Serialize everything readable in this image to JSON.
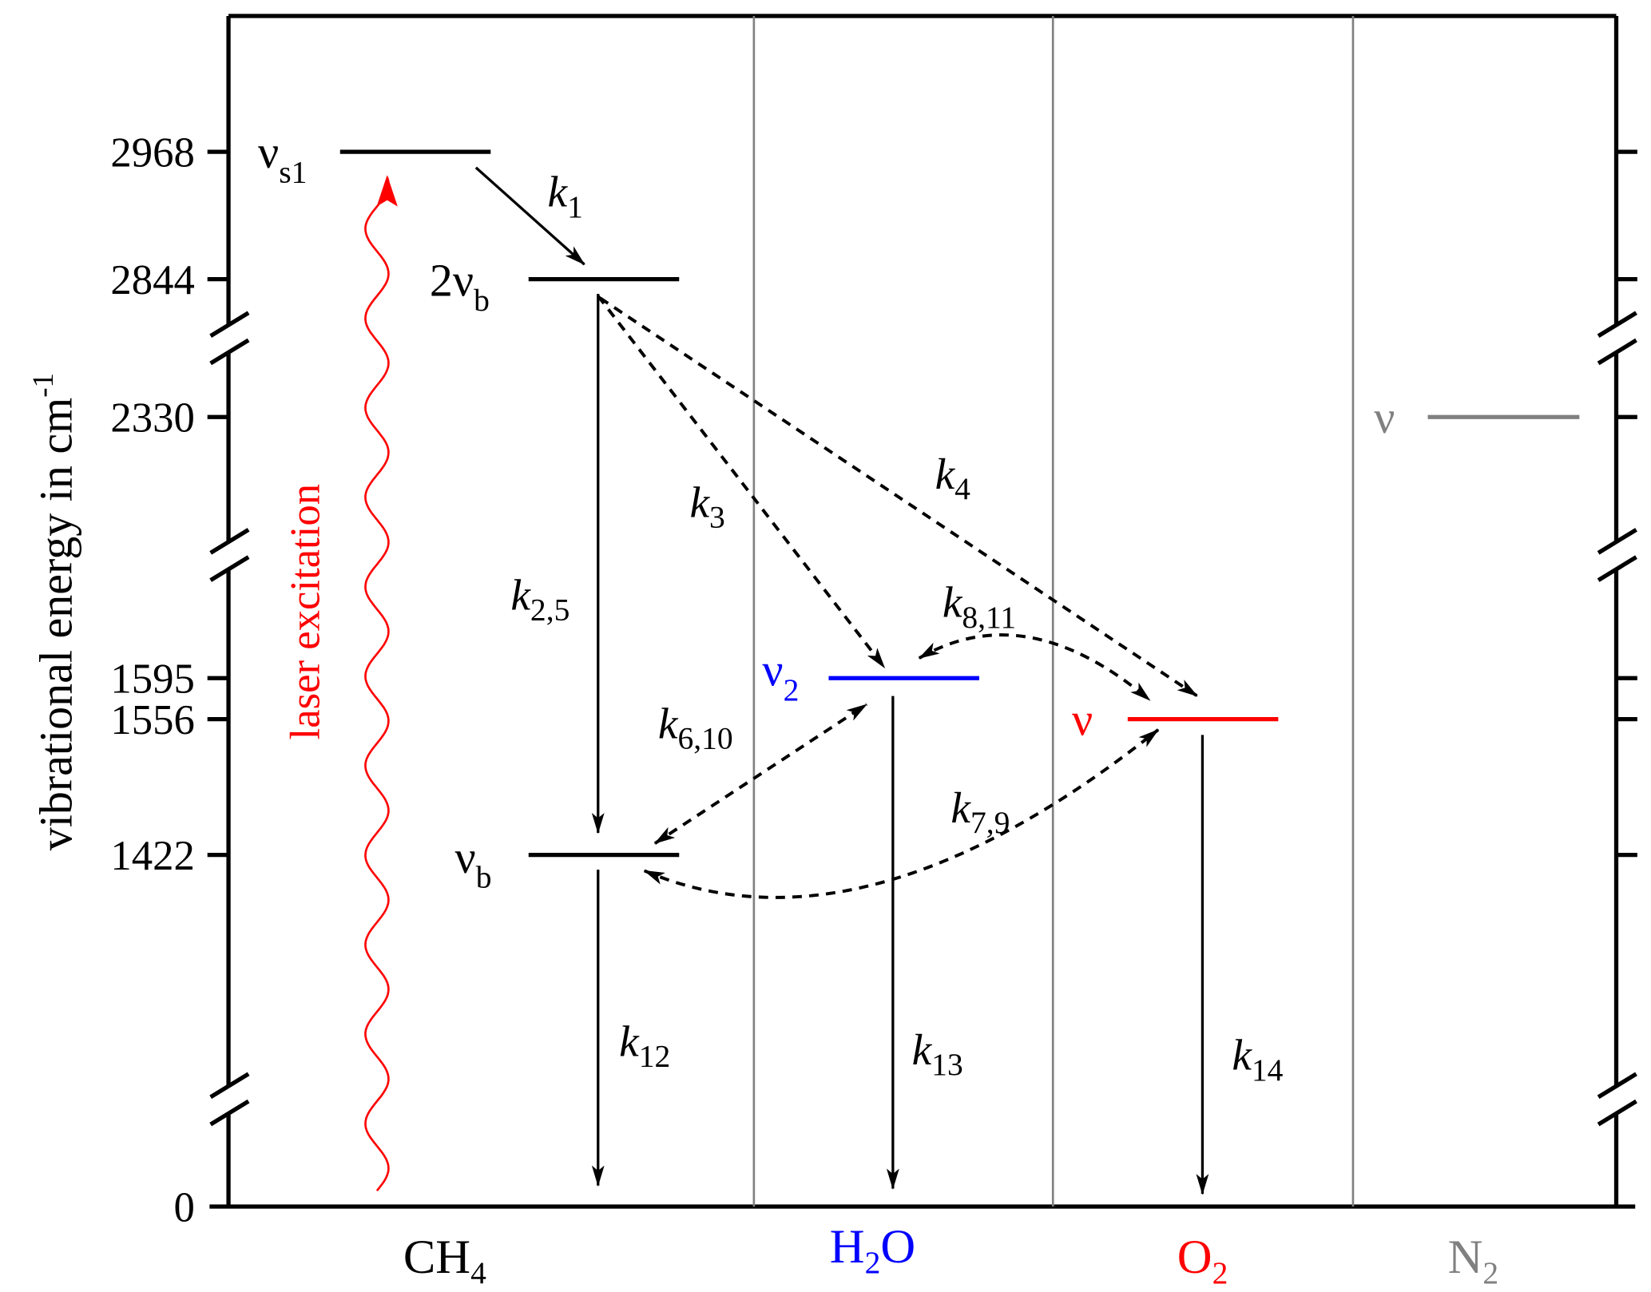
{
  "yaxis": {
    "label": "vibrational energy in cm",
    "label_sup": "-1",
    "ticks": [
      {
        "value": 2968,
        "label": "2968"
      },
      {
        "value": 2844,
        "label": "2844"
      },
      {
        "value": 2330,
        "label": "2330"
      },
      {
        "value": 1595,
        "label": "1595"
      },
      {
        "value": 1556,
        "label": "1556"
      },
      {
        "value": 1422,
        "label": "1422"
      },
      {
        "value": 0,
        "label": "0"
      }
    ],
    "breaks": "axis broken between 2844-2330, 2330-1595 and 1422-0"
  },
  "molecules": {
    "ch4": {
      "main": "CH",
      "sub": "4",
      "color": "#000000"
    },
    "h2o": {
      "main1": "H",
      "sub": "2",
      "main2": "O",
      "color": "#0000ff"
    },
    "o2": {
      "main": "O",
      "sub": "2",
      "color": "#ff0000"
    },
    "n2": {
      "main": "N",
      "sub": "2",
      "color": "#808080"
    }
  },
  "levels": {
    "vs1": {
      "sym": "ν",
      "sub": "s1",
      "energy": 2968,
      "molecule": "CH4"
    },
    "2vb": {
      "sym": "2ν",
      "sub": "b",
      "energy": 2844,
      "molecule": "CH4"
    },
    "vb": {
      "sym": "ν",
      "sub": "b",
      "energy": 1422,
      "molecule": "CH4"
    },
    "v2": {
      "sym": "ν",
      "sub": "2",
      "energy": 1595,
      "molecule": "H2O"
    },
    "vo2": {
      "sym": "ν",
      "energy": 1556,
      "molecule": "O2"
    },
    "vn2": {
      "sym": "ν",
      "energy": 2330,
      "molecule": "N2"
    }
  },
  "laser": {
    "label": "laser excitation",
    "color": "#ff0000"
  },
  "rates": {
    "k1": {
      "k": "k",
      "sub": "1"
    },
    "k25": {
      "k": "k",
      "sub": "2,5"
    },
    "k3": {
      "k": "k",
      "sub": "3"
    },
    "k4": {
      "k": "k",
      "sub": "4"
    },
    "k811": {
      "k": "k",
      "sub": "8,11"
    },
    "k610": {
      "k": "k",
      "sub": "6,10"
    },
    "k79": {
      "k": "k",
      "sub": "7,9"
    },
    "k12": {
      "k": "k",
      "sub": "12"
    },
    "k13": {
      "k": "k",
      "sub": "13"
    },
    "k14": {
      "k": "k",
      "sub": "14"
    }
  }
}
